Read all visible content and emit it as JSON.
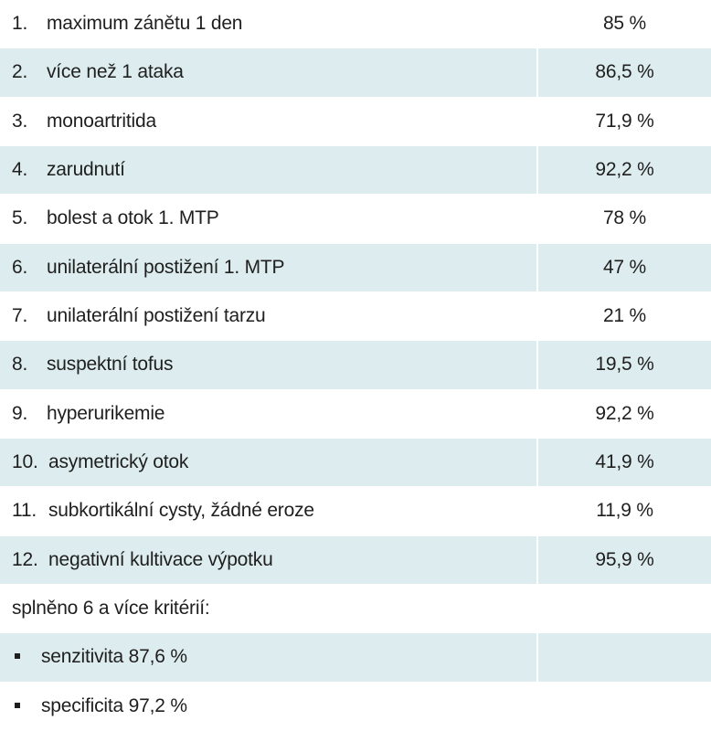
{
  "criteria": [
    {
      "num": "1.",
      "label": "maximum zánětu 1 den",
      "value": "85 %"
    },
    {
      "num": "2.",
      "label": "více než 1 ataka",
      "value": "86,5 %"
    },
    {
      "num": "3.",
      "label": "monoartritida",
      "value": "71,9 %"
    },
    {
      "num": "4.",
      "label": "zarudnutí",
      "value": "92,2 %"
    },
    {
      "num": "5.",
      "label": "bolest a otok 1. MTP",
      "value": "78 %"
    },
    {
      "num": "6.",
      "label": "unilaterální postižení 1. MTP",
      "value": "47 %"
    },
    {
      "num": "7.",
      "label": "unilaterální postižení tarzu",
      "value": "21 %"
    },
    {
      "num": "8.",
      "label": "suspektní tofus",
      "value": "19,5 %"
    },
    {
      "num": "9.",
      "label": "hyperurikemie",
      "value": "92,2 %"
    },
    {
      "num": "10.",
      "label": "asymetrický otok",
      "value": "41,9 %"
    },
    {
      "num": "11.",
      "label": "subkortikální cysty, žádné eroze",
      "value": "11,9 %"
    },
    {
      "num": "12.",
      "label": "negativní kultivace výpotku",
      "value": "95,9 %"
    }
  ],
  "summary": {
    "heading": "splněno 6 a více kritérií:",
    "bullets": [
      "senzitivita 87,6 %",
      "specificita 97,2 %"
    ]
  }
}
